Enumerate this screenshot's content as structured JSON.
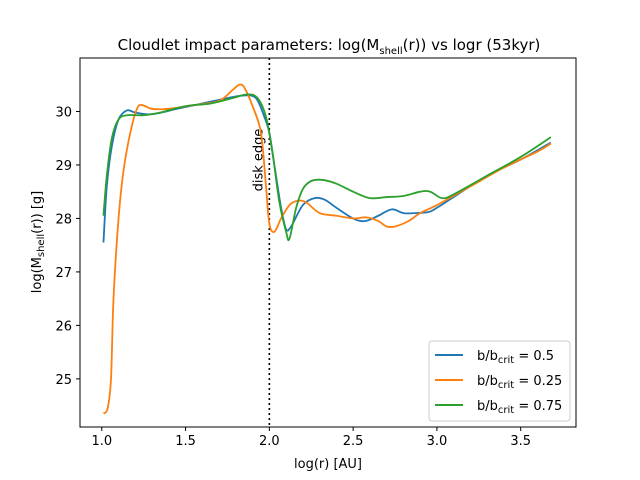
{
  "chart_data": {
    "type": "line",
    "title": "Cloudlet impact parameters: log(M_shell(r)) vs logr (53kyr)",
    "xlabel": "log(r) [AU]",
    "ylabel": "log(M_shell(r)) [g]",
    "xlim": [
      0.87,
      3.83
    ],
    "ylim": [
      24.1,
      31.0
    ],
    "xticks": [
      "1.0",
      "1.5",
      "2.0",
      "2.5",
      "3.0",
      "3.5"
    ],
    "yticks": [
      "25",
      "26",
      "27",
      "28",
      "29",
      "30"
    ],
    "legend_position": "lower-right",
    "grid": false,
    "annotation": {
      "text": "disk edge",
      "x": 2.0
    },
    "series": [
      {
        "name": "b/b_crit = 0.5",
        "color": "#1f77b4",
        "points": [
          [
            1.01,
            27.55
          ],
          [
            1.03,
            28.6
          ],
          [
            1.06,
            29.35
          ],
          [
            1.1,
            29.85
          ],
          [
            1.15,
            30.02
          ],
          [
            1.2,
            29.98
          ],
          [
            1.3,
            29.95
          ],
          [
            1.45,
            30.05
          ],
          [
            1.6,
            30.15
          ],
          [
            1.75,
            30.25
          ],
          [
            1.85,
            30.3
          ],
          [
            1.92,
            30.25
          ],
          [
            1.97,
            29.9
          ],
          [
            2.0,
            29.6
          ],
          [
            2.03,
            29.0
          ],
          [
            2.07,
            28.2
          ],
          [
            2.1,
            27.8
          ],
          [
            2.13,
            27.85
          ],
          [
            2.2,
            28.25
          ],
          [
            2.27,
            28.38
          ],
          [
            2.33,
            28.35
          ],
          [
            2.4,
            28.2
          ],
          [
            2.5,
            28.0
          ],
          [
            2.57,
            27.95
          ],
          [
            2.65,
            28.05
          ],
          [
            2.73,
            28.17
          ],
          [
            2.8,
            28.1
          ],
          [
            2.87,
            28.1
          ],
          [
            2.95,
            28.12
          ],
          [
            3.0,
            28.2
          ],
          [
            3.1,
            28.4
          ],
          [
            3.3,
            28.8
          ],
          [
            3.5,
            29.1
          ],
          [
            3.68,
            29.42
          ]
        ]
      },
      {
        "name": "b/b_crit = 0.25",
        "color": "#ff7f0e",
        "points": [
          [
            1.01,
            24.35
          ],
          [
            1.035,
            24.45
          ],
          [
            1.055,
            25.0
          ],
          [
            1.07,
            26.5
          ],
          [
            1.1,
            28.0
          ],
          [
            1.13,
            28.9
          ],
          [
            1.17,
            29.6
          ],
          [
            1.21,
            30.05
          ],
          [
            1.24,
            30.12
          ],
          [
            1.3,
            30.05
          ],
          [
            1.4,
            30.05
          ],
          [
            1.55,
            30.12
          ],
          [
            1.7,
            30.2
          ],
          [
            1.78,
            30.4
          ],
          [
            1.82,
            30.5
          ],
          [
            1.85,
            30.45
          ],
          [
            1.9,
            30.1
          ],
          [
            1.95,
            29.6
          ],
          [
            1.98,
            28.6
          ],
          [
            2.0,
            27.9
          ],
          [
            2.03,
            27.75
          ],
          [
            2.07,
            28.0
          ],
          [
            2.12,
            28.25
          ],
          [
            2.17,
            28.33
          ],
          [
            2.22,
            28.3
          ],
          [
            2.3,
            28.1
          ],
          [
            2.4,
            28.05
          ],
          [
            2.5,
            28.0
          ],
          [
            2.58,
            28.02
          ],
          [
            2.65,
            27.95
          ],
          [
            2.7,
            27.85
          ],
          [
            2.75,
            27.85
          ],
          [
            2.83,
            27.95
          ],
          [
            2.9,
            28.1
          ],
          [
            3.0,
            28.25
          ],
          [
            3.2,
            28.6
          ],
          [
            3.4,
            28.95
          ],
          [
            3.6,
            29.25
          ],
          [
            3.68,
            29.4
          ]
        ]
      },
      {
        "name": "b/b_crit = 0.75",
        "color": "#2ca02c",
        "points": [
          [
            1.01,
            28.05
          ],
          [
            1.03,
            28.8
          ],
          [
            1.06,
            29.5
          ],
          [
            1.1,
            29.85
          ],
          [
            1.15,
            29.93
          ],
          [
            1.25,
            29.93
          ],
          [
            1.35,
            29.98
          ],
          [
            1.5,
            30.1
          ],
          [
            1.65,
            30.15
          ],
          [
            1.78,
            30.25
          ],
          [
            1.87,
            30.32
          ],
          [
            1.93,
            30.25
          ],
          [
            1.98,
            29.9
          ],
          [
            2.02,
            29.2
          ],
          [
            2.06,
            28.3
          ],
          [
            2.1,
            27.75
          ],
          [
            2.12,
            27.62
          ],
          [
            2.16,
            28.2
          ],
          [
            2.2,
            28.55
          ],
          [
            2.25,
            28.7
          ],
          [
            2.32,
            28.72
          ],
          [
            2.4,
            28.65
          ],
          [
            2.5,
            28.5
          ],
          [
            2.6,
            28.38
          ],
          [
            2.7,
            28.4
          ],
          [
            2.8,
            28.42
          ],
          [
            2.9,
            28.5
          ],
          [
            2.96,
            28.5
          ],
          [
            3.03,
            28.38
          ],
          [
            3.1,
            28.45
          ],
          [
            3.3,
            28.8
          ],
          [
            3.5,
            29.15
          ],
          [
            3.68,
            29.52
          ]
        ]
      }
    ]
  },
  "display": {
    "title_main": "Cloudlet impact parameters: log(M",
    "title_sub": "shell",
    "title_rest": "(r)) vs logr (53kyr)",
    "xlabel": "log(r) [AU]",
    "ylabel_main": "log(M",
    "ylabel_sub": "shell",
    "ylabel_rest": "(r)) [g]",
    "legend": [
      {
        "main": "b/b",
        "sub": "crit",
        "rest": " = 0.5"
      },
      {
        "main": "b/b",
        "sub": "crit",
        "rest": " = 0.25"
      },
      {
        "main": "b/b",
        "sub": "crit",
        "rest": " = 0.75"
      }
    ]
  }
}
